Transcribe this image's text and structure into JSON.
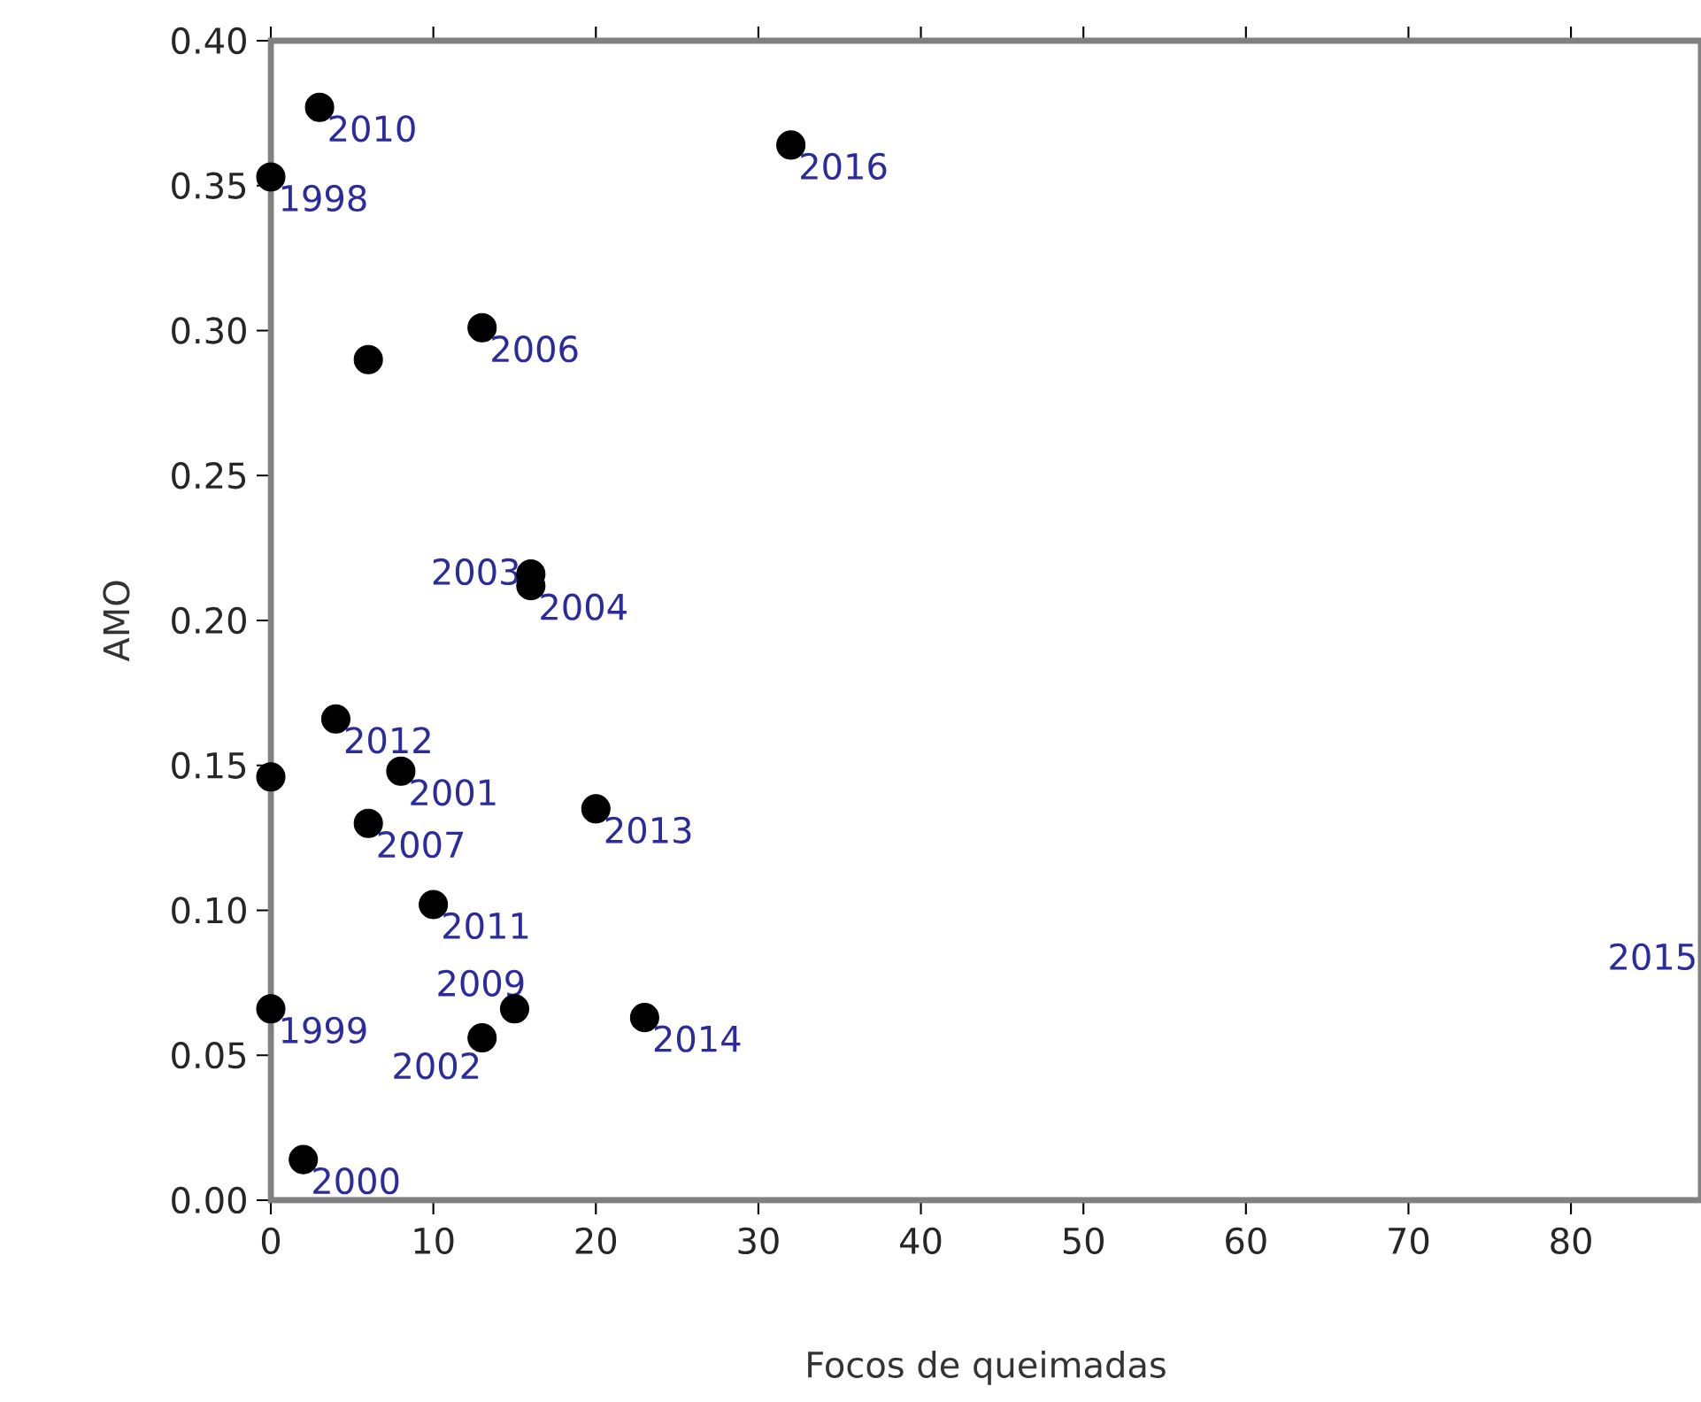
{
  "chart_data": {
    "type": "scatter",
    "xlabel": "Focos de queimadas",
    "ylabel": "AMO",
    "x": [
      3,
      0,
      32,
      6,
      13,
      16,
      16,
      4,
      0,
      8,
      6,
      20,
      10,
      15,
      0,
      13,
      23,
      2
    ],
    "values": [
      0.377,
      0.353,
      0.364,
      0.29,
      0.301,
      0.216,
      0.212,
      0.166,
      0.146,
      0.148,
      0.13,
      0.135,
      0.102,
      0.066,
      0.066,
      0.056,
      0.063,
      0.014
    ],
    "color": "#000000",
    "marker": "circle",
    "grid": false,
    "xlim": [
      0,
      88
    ],
    "ylim": [
      0,
      0.4
    ],
    "xticks": [
      0,
      10,
      20,
      30,
      40,
      50,
      60,
      70,
      80
    ],
    "yticks": [
      {
        "value": 0,
        "label": "0.00"
      },
      {
        "value": 0.05,
        "label": "0.05"
      },
      {
        "value": 0.1,
        "label": "0.10"
      },
      {
        "value": 0.15,
        "label": "0.15"
      },
      {
        "value": 0.2,
        "label": "0.20"
      },
      {
        "value": 0.25,
        "label": "0.25"
      },
      {
        "value": 0.3,
        "label": "0.30"
      },
      {
        "value": 0.35,
        "label": "0.35"
      },
      {
        "value": 0.4,
        "label": "0.40"
      }
    ],
    "annotations": [
      {
        "text": "2010",
        "x": 3,
        "y": 0.377
      },
      {
        "text": "1998",
        "x": 0,
        "y": 0.353
      },
      {
        "text": "2016",
        "x": 32,
        "y": 0.364
      },
      {
        "text": "2006",
        "x": 13,
        "y": 0.301
      },
      {
        "text": "2003",
        "x": 16,
        "y": 0.216
      },
      {
        "text": "2004",
        "x": 16,
        "y": 0.212
      },
      {
        "text": "2012",
        "x": 4,
        "y": 0.166
      },
      {
        "text": "2001",
        "x": 8,
        "y": 0.148
      },
      {
        "text": "2007",
        "x": 6,
        "y": 0.13
      },
      {
        "text": "2013",
        "x": 20,
        "y": 0.135
      },
      {
        "text": "2011",
        "x": 10,
        "y": 0.102
      },
      {
        "text": "2009",
        "x": 15,
        "y": 0.066
      },
      {
        "text": "1999",
        "x": 0,
        "y": 0.066
      },
      {
        "text": "2002",
        "x": 13,
        "y": 0.056
      },
      {
        "text": "2014",
        "x": 23,
        "y": 0.063
      },
      {
        "text": "2000",
        "x": 2,
        "y": 0.014
      },
      "2015"
    ]
  }
}
